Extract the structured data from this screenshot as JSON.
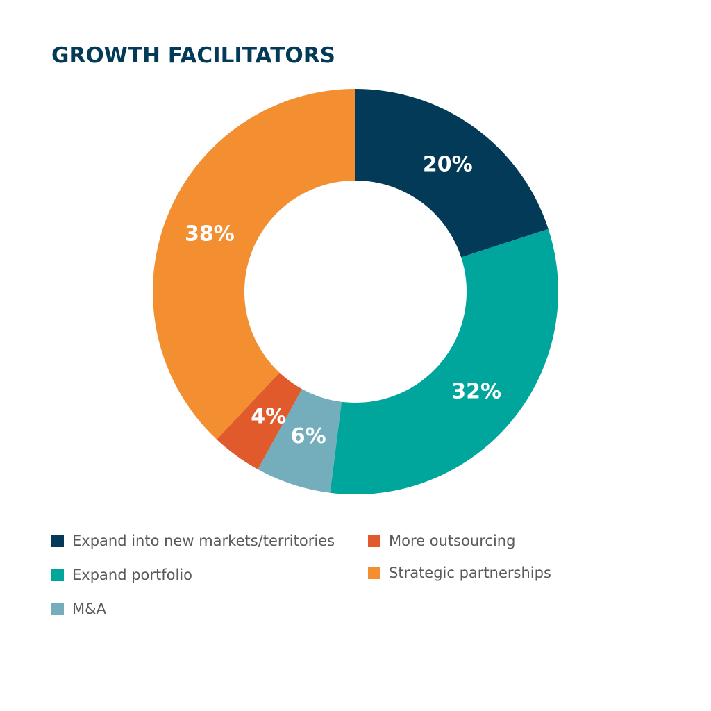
{
  "chart_data": {
    "type": "pie",
    "title": "GROWTH FACILITATORS",
    "donut": true,
    "categories": [
      "Expand into new markets/territories",
      "Expand portfolio",
      "M&A",
      "More outsourcing",
      "Strategic partnerships"
    ],
    "values": [
      20,
      32,
      6,
      4,
      38
    ],
    "value_labels": [
      "20%",
      "32%",
      "6%",
      "4%",
      "38%"
    ],
    "colors": [
      "#033a57",
      "#00a69c",
      "#74aebc",
      "#e05a2b",
      "#f48f31"
    ],
    "legend_placement": "bottom"
  }
}
